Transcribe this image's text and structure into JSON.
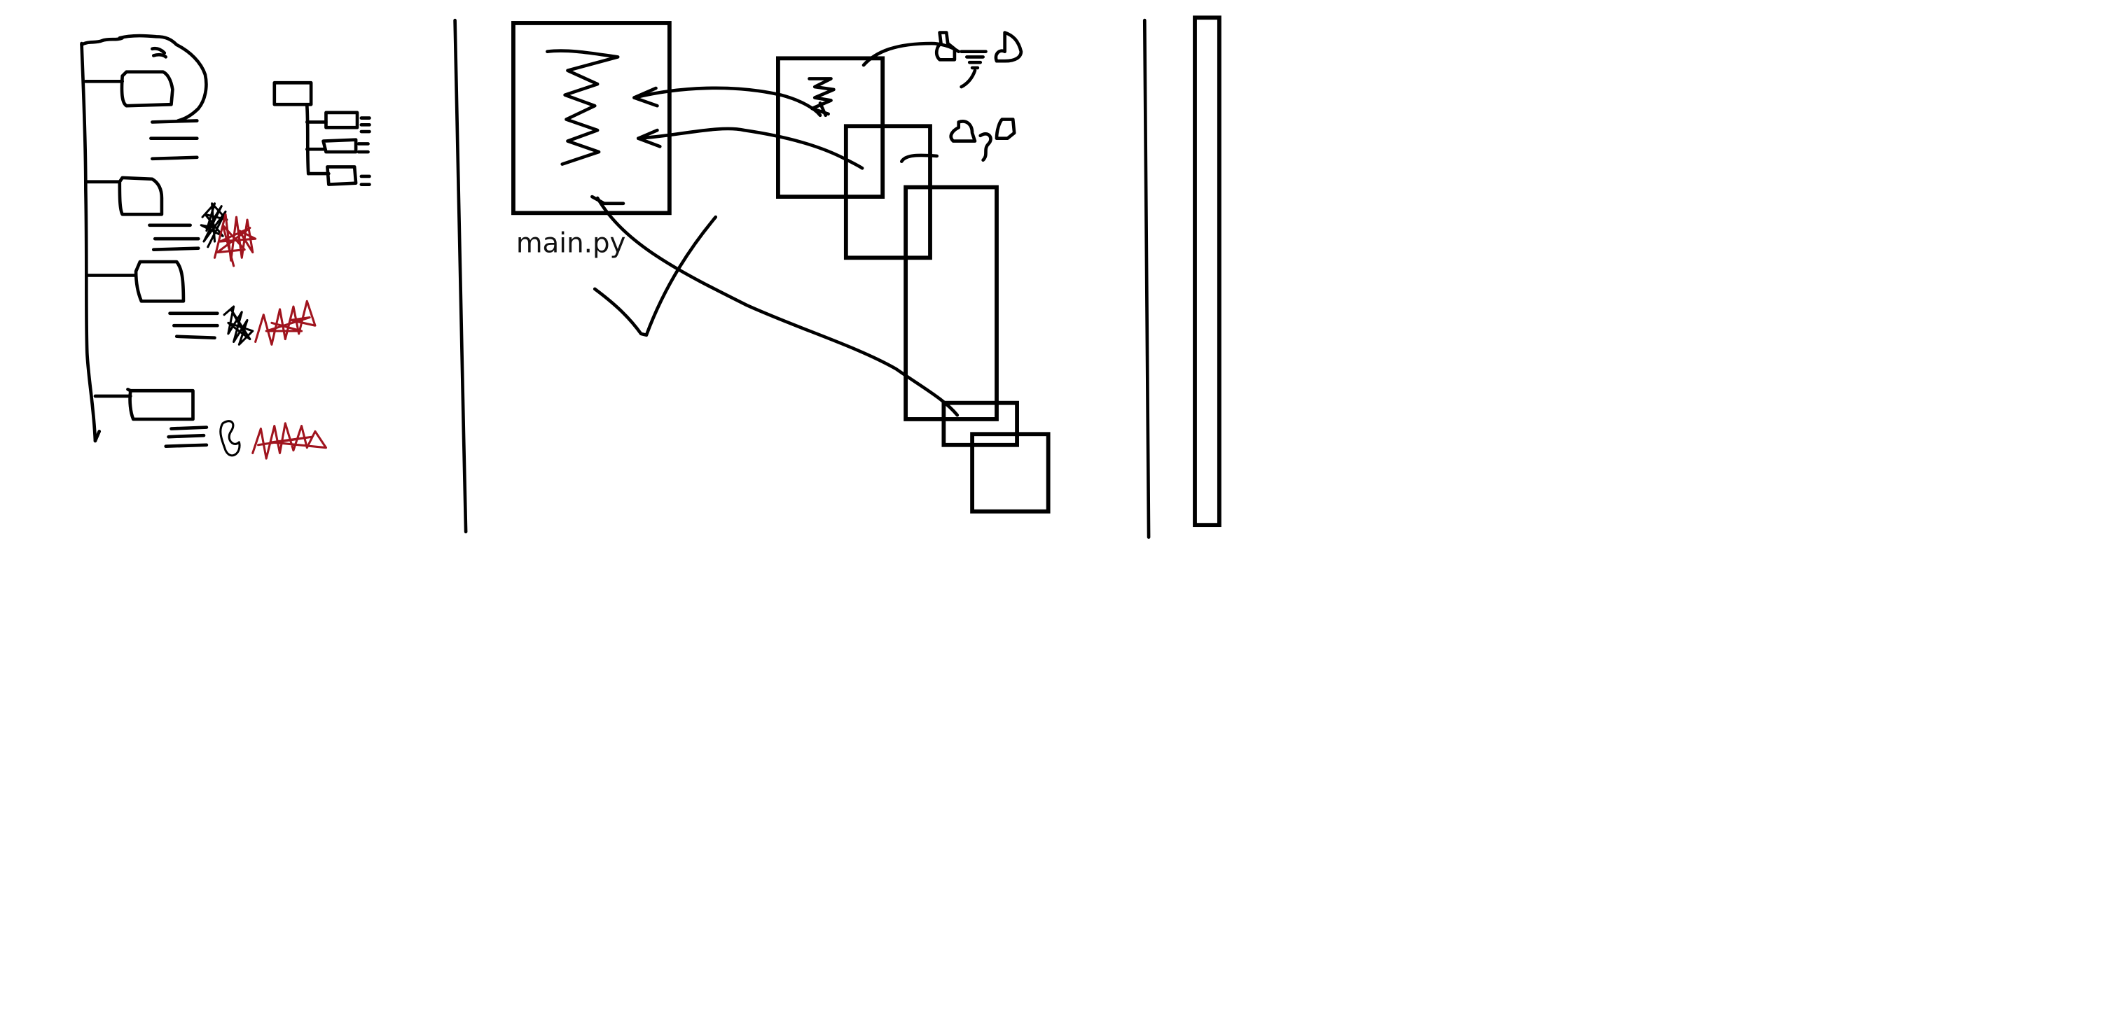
{
  "editor": {
    "file_label": "main.py"
  },
  "colors": {
    "ink": "#000000",
    "scribble_red": "#a0141e",
    "scribble_black": "#000000",
    "background": "#ffffff"
  }
}
